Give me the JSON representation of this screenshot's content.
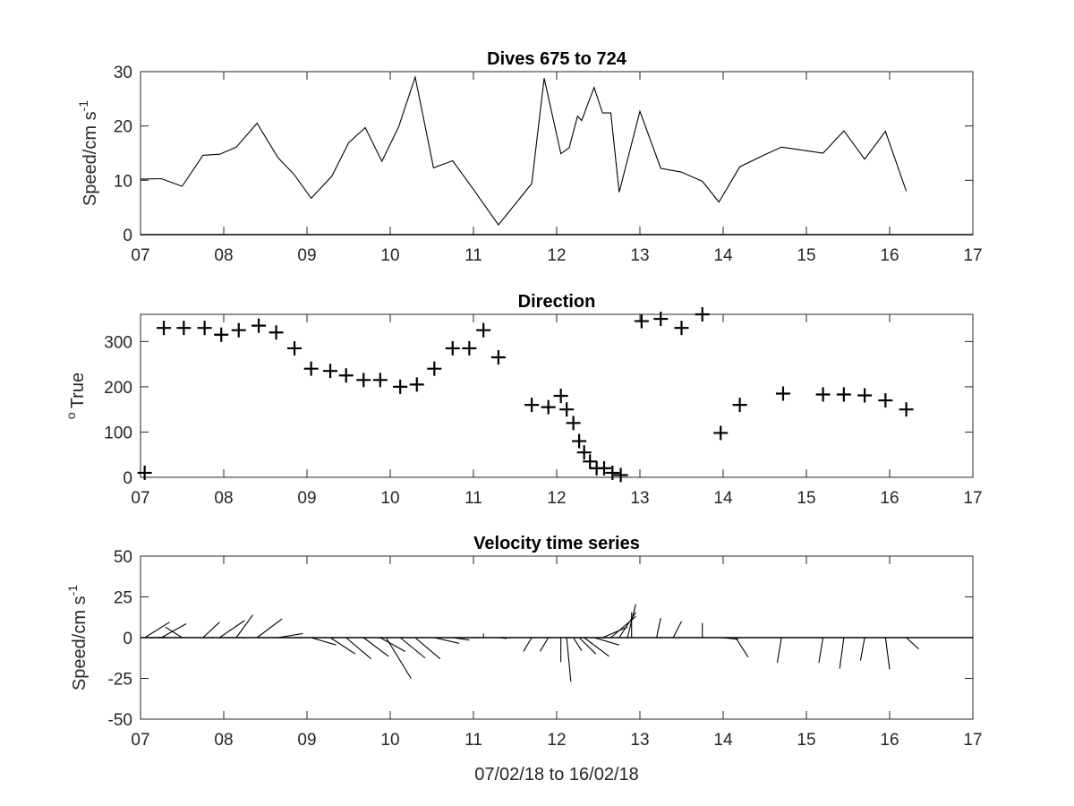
{
  "chart_data": [
    {
      "type": "line",
      "title": "Dives 675 to 724",
      "ylabel": "Speed/cm s",
      "ylabel_sup": "-1",
      "xlabel": "",
      "xlim": [
        7,
        17
      ],
      "ylim": [
        0,
        30
      ],
      "x_ticks": [
        7,
        8,
        9,
        10,
        11,
        12,
        13,
        14,
        15,
        16,
        17
      ],
      "x_tick_labels": [
        "07",
        "08",
        "09",
        "10",
        "11",
        "12",
        "13",
        "14",
        "15",
        "16",
        "17"
      ],
      "y_ticks": [
        0,
        10,
        20,
        30
      ],
      "y_tick_labels": [
        "0",
        "10",
        "20",
        "30"
      ],
      "grid": false,
      "series": [
        {
          "x": [
            7.0,
            7.25,
            7.5,
            7.75,
            7.95,
            8.15,
            8.4,
            8.65,
            8.85,
            9.05,
            9.3,
            9.5,
            9.7,
            9.9,
            10.1,
            10.3,
            10.52,
            10.75,
            11.0,
            11.3,
            11.7,
            11.85,
            12.05,
            12.15,
            12.25,
            12.3,
            12.45,
            12.55,
            12.65,
            12.75,
            13.0,
            13.25,
            13.5,
            13.75,
            13.95,
            14.2,
            14.5,
            14.7,
            15.2,
            15.45,
            15.7,
            15.95,
            16.2
          ],
          "y": [
            10.2,
            10.3,
            8.9,
            14.6,
            14.8,
            16.1,
            20.5,
            14.2,
            11.0,
            6.7,
            10.8,
            16.9,
            19.7,
            13.5,
            19.8,
            29.0,
            12.3,
            13.6,
            8.3,
            1.8,
            9.4,
            28.8,
            14.9,
            16.0,
            21.8,
            21.0,
            27.1,
            22.4,
            22.4,
            7.8,
            22.7,
            12.2,
            11.5,
            9.8,
            6.0,
            12.5,
            14.7,
            16.1,
            15.0,
            19.1,
            13.9,
            19.0,
            8.0
          ]
        }
      ]
    },
    {
      "type": "scatter",
      "title": "Direction",
      "ylabel": "True",
      "ylabel_sup": "o",
      "xlabel": "",
      "xlim": [
        7,
        17
      ],
      "ylim": [
        0,
        360
      ],
      "x_ticks": [
        7,
        8,
        9,
        10,
        11,
        12,
        13,
        14,
        15,
        16,
        17
      ],
      "x_tick_labels": [
        "07",
        "08",
        "09",
        "10",
        "11",
        "12",
        "13",
        "14",
        "15",
        "16",
        "17"
      ],
      "y_ticks": [
        0,
        100,
        200,
        300
      ],
      "y_tick_labels": [
        "0",
        "100",
        "200",
        "300"
      ],
      "grid": false,
      "marker": "+",
      "series": [
        {
          "x": [
            7.05,
            7.28,
            7.52,
            7.77,
            7.97,
            8.18,
            8.42,
            8.63,
            8.85,
            9.05,
            9.28,
            9.47,
            9.68,
            9.88,
            10.12,
            10.32,
            10.53,
            10.75,
            10.95,
            11.12,
            11.3,
            11.7,
            11.9,
            12.05,
            12.12,
            12.2,
            12.27,
            12.33,
            12.4,
            12.48,
            12.57,
            12.67,
            12.77,
            13.02,
            13.25,
            13.5,
            13.75,
            13.97,
            14.2,
            14.72,
            15.2,
            15.45,
            15.7,
            15.95,
            16.2
          ],
          "y": [
            10,
            330,
            330,
            330,
            315,
            325,
            335,
            320,
            285,
            240,
            235,
            225,
            215,
            215,
            200,
            205,
            240,
            285,
            285,
            325,
            265,
            160,
            155,
            180,
            150,
            120,
            80,
            55,
            35,
            20,
            20,
            10,
            5,
            345,
            350,
            330,
            360,
            98,
            160,
            185,
            183,
            183,
            181,
            170,
            150
          ]
        }
      ]
    },
    {
      "type": "line",
      "subtype": "stick-vectors",
      "title": "Velocity time series",
      "ylabel": "Speed/cm s",
      "ylabel_sup": "-1",
      "xlabel": "07/02/18 to 16/02/18",
      "xlim": [
        7,
        17
      ],
      "ylim": [
        -50,
        50
      ],
      "x_ticks": [
        7,
        8,
        9,
        10,
        11,
        12,
        13,
        14,
        15,
        16,
        17
      ],
      "x_tick_labels": [
        "07",
        "08",
        "09",
        "10",
        "11",
        "12",
        "13",
        "14",
        "15",
        "16",
        "17"
      ],
      "y_ticks": [
        -50,
        -25,
        0,
        25,
        50
      ],
      "y_tick_labels": [
        "-50",
        "-25",
        "0",
        "25",
        "50"
      ],
      "grid": false,
      "baseline": 0,
      "sticks": [
        {
          "x": 7.0,
          "u": 0.3,
          "v": 0.2
        },
        {
          "x": 7.05,
          "u": 0.3,
          "v": 9.5
        },
        {
          "x": 7.25,
          "u": 0.3,
          "v": 8.5
        },
        {
          "x": 7.5,
          "u": -0.2,
          "v": 6.5
        },
        {
          "x": 7.75,
          "u": 0.2,
          "v": 9.5
        },
        {
          "x": 7.95,
          "u": 0.3,
          "v": 10.5
        },
        {
          "x": 8.15,
          "u": 0.2,
          "v": 14.0
        },
        {
          "x": 8.4,
          "u": 0.3,
          "v": 11.5
        },
        {
          "x": 8.65,
          "u": 0.3,
          "v": 2.5
        },
        {
          "x": 8.85,
          "u": 0.1,
          "v": 0.0
        },
        {
          "x": 9.05,
          "u": 0.3,
          "v": -4.5
        },
        {
          "x": 9.28,
          "u": 0.3,
          "v": -10.0
        },
        {
          "x": 9.47,
          "u": 0.3,
          "v": -13.0
        },
        {
          "x": 9.68,
          "u": 0.3,
          "v": -11.5
        },
        {
          "x": 9.88,
          "u": 0.3,
          "v": -8.5
        },
        {
          "x": 9.95,
          "u": 0.3,
          "v": -25.0
        },
        {
          "x": 10.12,
          "u": 0.3,
          "v": -12.5
        },
        {
          "x": 10.3,
          "u": 0.3,
          "v": -13.0
        },
        {
          "x": 10.53,
          "u": 0.3,
          "v": -3.5
        },
        {
          "x": 10.75,
          "u": 0.2,
          "v": -1.5
        },
        {
          "x": 10.95,
          "u": 0.1,
          "v": 0.0
        },
        {
          "x": 11.12,
          "u": 0.0,
          "v": 2.5
        },
        {
          "x": 11.3,
          "u": 0.1,
          "v": -0.5
        },
        {
          "x": 11.7,
          "u": -0.1,
          "v": -8.5
        },
        {
          "x": 11.9,
          "u": -0.1,
          "v": -8.5
        },
        {
          "x": 12.05,
          "u": 0.0,
          "v": -15.0
        },
        {
          "x": 12.12,
          "u": 0.05,
          "v": -27.0
        },
        {
          "x": 12.2,
          "u": 0.1,
          "v": -8.0
        },
        {
          "x": 12.27,
          "u": 0.2,
          "v": -10.0
        },
        {
          "x": 12.33,
          "u": 0.3,
          "v": -11.5
        },
        {
          "x": 12.45,
          "u": 0.3,
          "v": -4.5
        },
        {
          "x": 12.55,
          "u": 0.3,
          "v": 6.5
        },
        {
          "x": 12.65,
          "u": 0.3,
          "v": 13.0
        },
        {
          "x": 12.75,
          "u": 0.2,
          "v": 15.5
        },
        {
          "x": 12.85,
          "u": 0.1,
          "v": 20.5
        },
        {
          "x": 12.9,
          "u": 0.0,
          "v": 15.5
        },
        {
          "x": 13.2,
          "u": 0.05,
          "v": 12.0
        },
        {
          "x": 13.4,
          "u": 0.1,
          "v": 10.0
        },
        {
          "x": 13.75,
          "u": 0.0,
          "v": 9.0
        },
        {
          "x": 13.98,
          "u": 0.2,
          "v": -1.0
        },
        {
          "x": 14.15,
          "u": 0.15,
          "v": -12.0
        },
        {
          "x": 14.7,
          "u": -0.05,
          "v": -15.5
        },
        {
          "x": 15.2,
          "u": -0.05,
          "v": -15.5
        },
        {
          "x": 15.45,
          "u": -0.05,
          "v": -19.0
        },
        {
          "x": 15.7,
          "u": -0.05,
          "v": -14.0
        },
        {
          "x": 15.95,
          "u": 0.05,
          "v": -19.5
        },
        {
          "x": 16.2,
          "u": 0.15,
          "v": -7.0
        }
      ]
    }
  ]
}
